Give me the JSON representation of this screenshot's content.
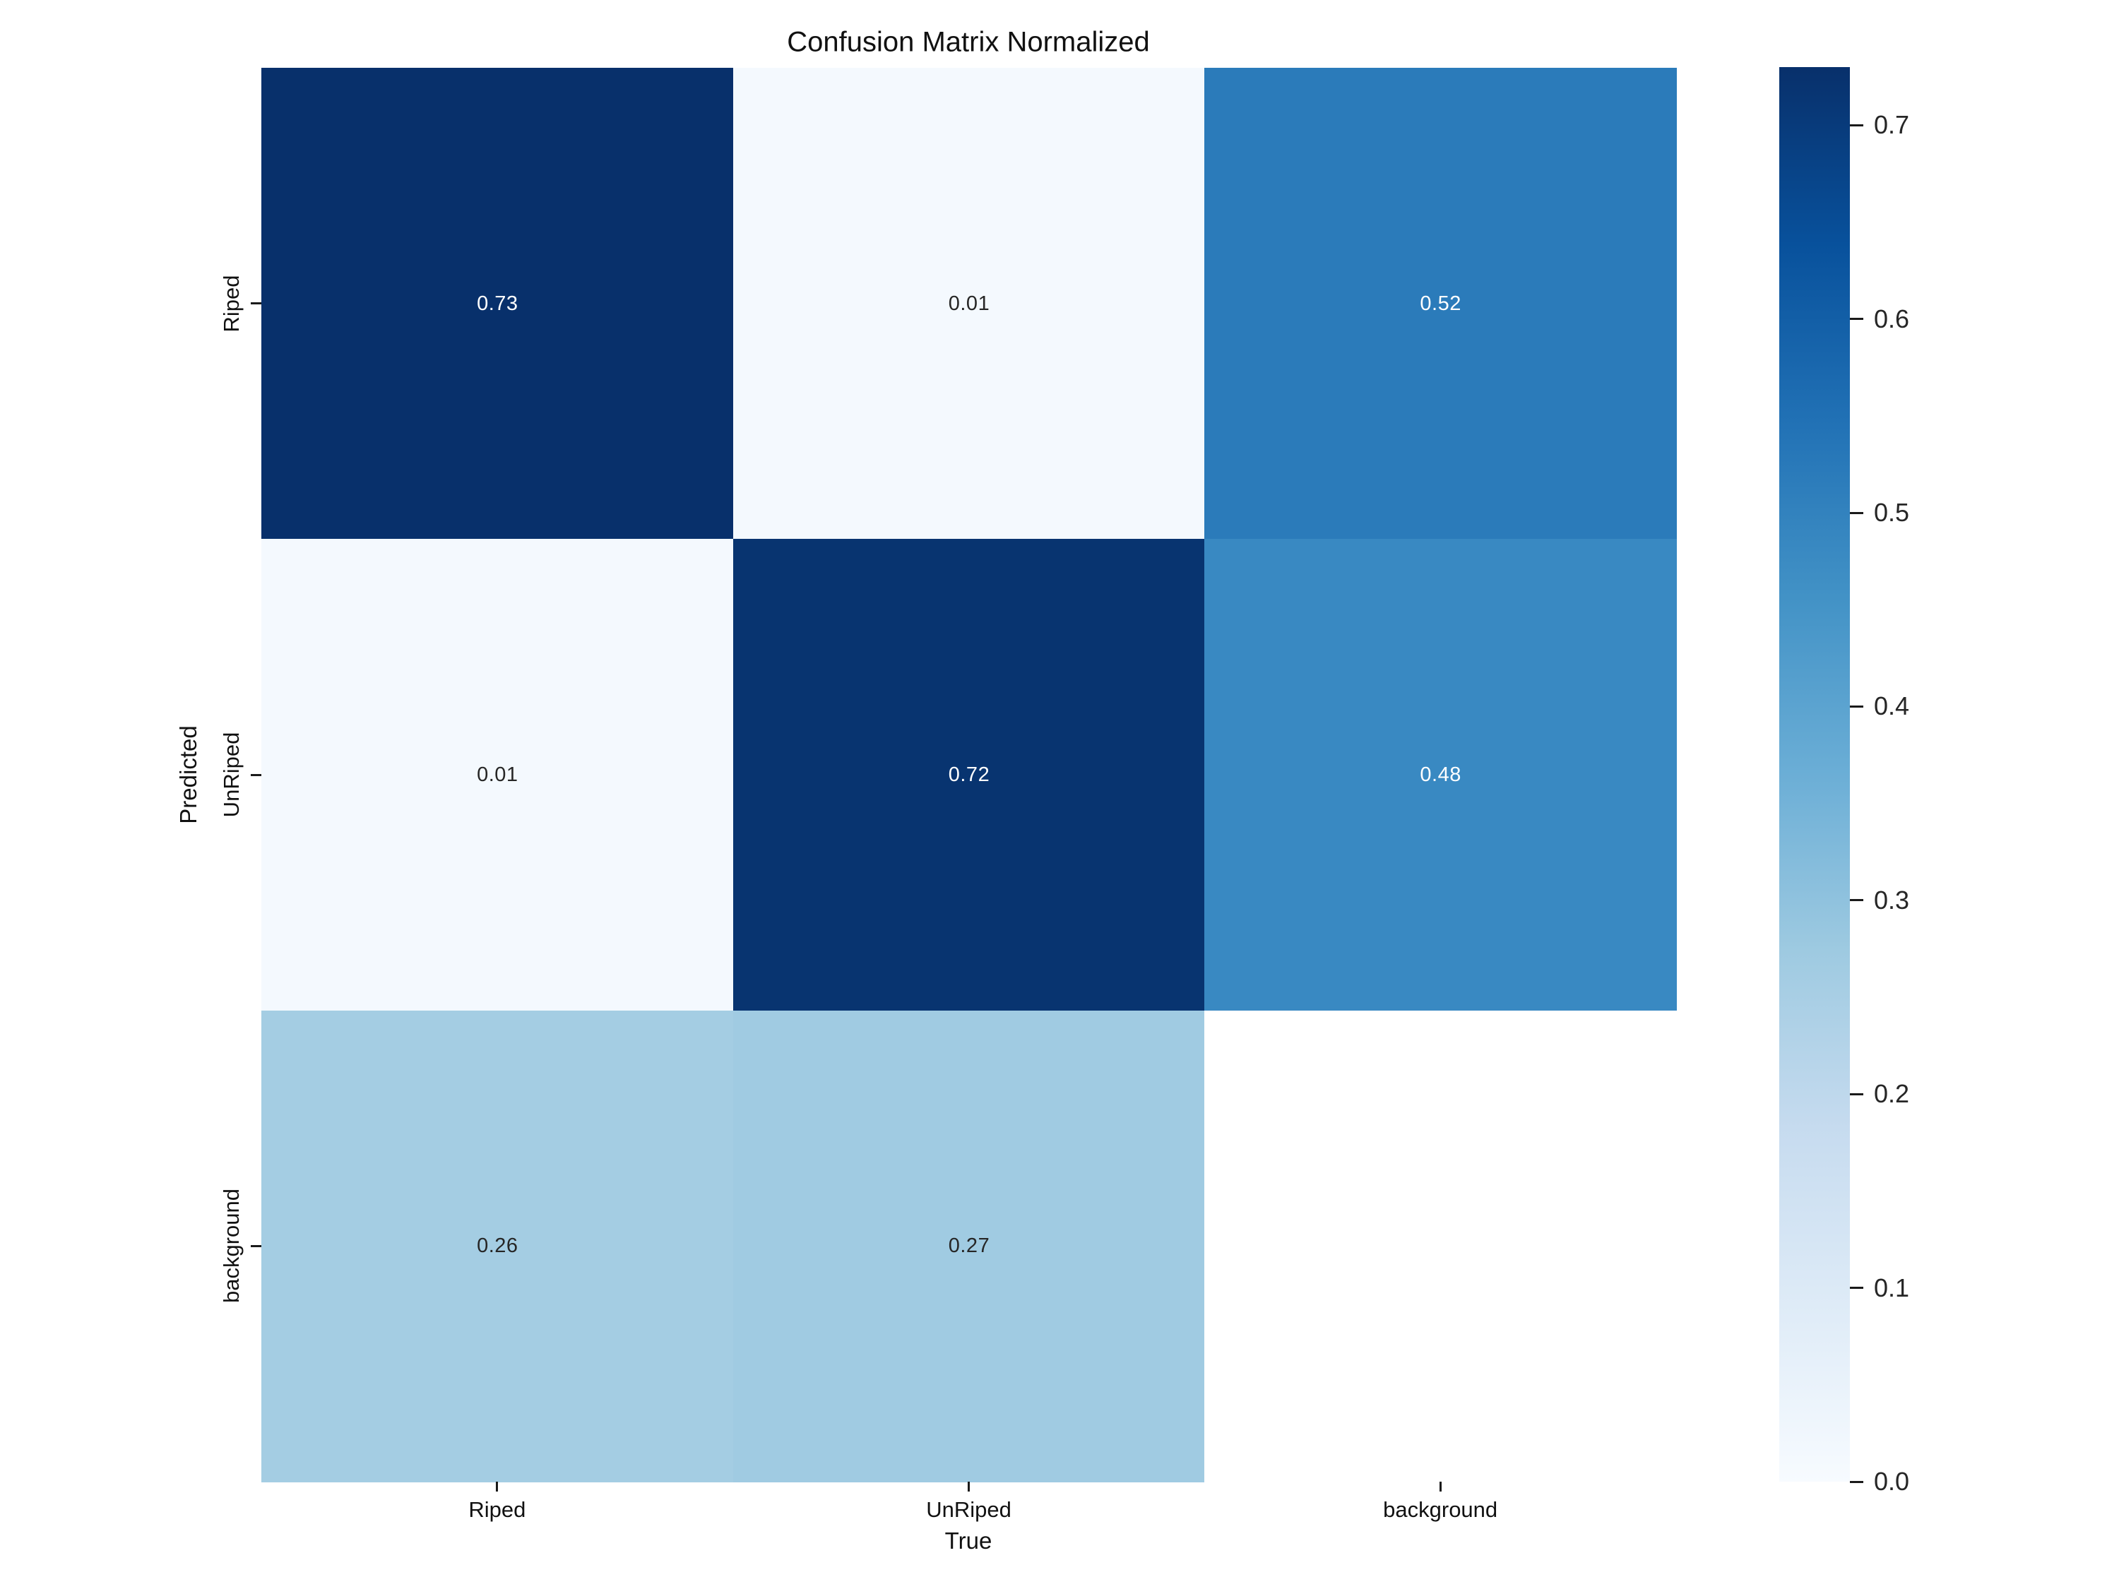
{
  "figure": {
    "background_color": "#ffffff",
    "text_color": "#111111"
  },
  "chart_data": {
    "type": "heatmap",
    "title": "Confusion Matrix Normalized",
    "xlabel": "True",
    "ylabel": "Predicted",
    "x_categories": [
      "Riped",
      "UnRiped",
      "background"
    ],
    "y_categories": [
      "Riped",
      "UnRiped",
      "background"
    ],
    "matrix": [
      [
        0.73,
        0.01,
        0.52
      ],
      [
        0.01,
        0.72,
        0.48
      ],
      [
        0.26,
        0.27,
        null
      ]
    ],
    "cell_labels": [
      [
        "0.73",
        "0.01",
        "0.52"
      ],
      [
        "0.01",
        "0.72",
        "0.48"
      ],
      [
        "0.26",
        "0.27",
        ""
      ]
    ],
    "cell_colors": [
      [
        "#08306b",
        "#f4f9fe",
        "#2b7bba"
      ],
      [
        "#f4f9fe",
        "#083470",
        "#3989c2"
      ],
      [
        "#a4cde3",
        "#a0cbe2",
        "#ffffff"
      ]
    ],
    "annot_colors": [
      [
        "#ffffff",
        "#262626",
        "#ffffff"
      ],
      [
        "#262626",
        "#ffffff",
        "#ffffff"
      ],
      [
        "#262626",
        "#262626",
        "#262626"
      ]
    ],
    "colormap": "Blues",
    "vmin": 0.0,
    "vmax": 0.73,
    "grid": "off",
    "legend_position": "right-colorbar",
    "colorbar": {
      "tick_labels": [
        "0.0",
        "0.1",
        "0.2",
        "0.3",
        "0.4",
        "0.5",
        "0.6",
        "0.7"
      ],
      "tick_values": [
        0.0,
        0.1,
        0.2,
        0.3,
        0.4,
        0.5,
        0.6,
        0.7
      ],
      "gradient_stops": [
        "#f7fbff",
        "#deebf7",
        "#c6dbef",
        "#9ecae1",
        "#6baed6",
        "#4292c6",
        "#2171b5",
        "#08519c",
        "#08306b"
      ]
    }
  }
}
